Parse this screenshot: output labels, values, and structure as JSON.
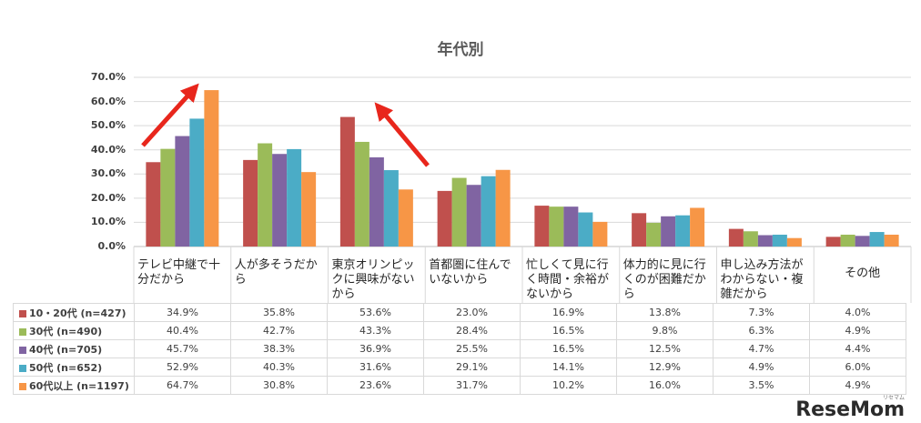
{
  "chart_data": {
    "type": "bar",
    "title": "年代別",
    "ylim": [
      0,
      70
    ],
    "yticks": [
      "0.0%",
      "10.0%",
      "20.0%",
      "30.0%",
      "40.0%",
      "50.0%",
      "60.0%",
      "70.0%"
    ],
    "grid": true,
    "legend": "data-table",
    "categories": [
      "テレビ中継で十分だから",
      "人が多そうだから",
      "東京オリンピックに興味がないから",
      "首都圏に住んでいないから",
      "忙しくて見に行く時間・余裕がないから",
      "体力的に見に行くのが困難だから",
      "申し込み方法がわからない・複雑だから",
      "その他"
    ],
    "series": [
      {
        "name": "10・20代 (n=427)",
        "color": "#c0504d",
        "values": [
          34.9,
          35.8,
          53.6,
          23.0,
          16.9,
          13.8,
          7.3,
          4.0
        ],
        "labels": [
          "34.9%",
          "35.8%",
          "53.6%",
          "23.0%",
          "16.9%",
          "13.8%",
          "7.3%",
          "4.0%"
        ]
      },
      {
        "name": "30代 (n=490)",
        "color": "#9bbb59",
        "values": [
          40.4,
          42.7,
          43.3,
          28.4,
          16.5,
          9.8,
          6.3,
          4.9
        ],
        "labels": [
          "40.4%",
          "42.7%",
          "43.3%",
          "28.4%",
          "16.5%",
          "9.8%",
          "6.3%",
          "4.9%"
        ]
      },
      {
        "name": "40代 (n=705)",
        "color": "#8064a2",
        "values": [
          45.7,
          38.3,
          36.9,
          25.5,
          16.5,
          12.5,
          4.7,
          4.4
        ],
        "labels": [
          "45.7%",
          "38.3%",
          "36.9%",
          "25.5%",
          "16.5%",
          "12.5%",
          "4.7%",
          "4.4%"
        ]
      },
      {
        "name": "50代 (n=652)",
        "color": "#4bacc6",
        "values": [
          52.9,
          40.3,
          31.6,
          29.1,
          14.1,
          12.9,
          4.9,
          6.0
        ],
        "labels": [
          "52.9%",
          "40.3%",
          "31.6%",
          "29.1%",
          "14.1%",
          "12.9%",
          "4.9%",
          "6.0%"
        ]
      },
      {
        "name": "60代以上 (n=1197)",
        "color": "#f79646",
        "values": [
          64.7,
          30.8,
          23.6,
          31.7,
          10.2,
          16.0,
          3.5,
          4.9
        ],
        "labels": [
          "64.7%",
          "30.8%",
          "23.6%",
          "31.7%",
          "10.2%",
          "16.0%",
          "3.5%",
          "4.9%"
        ]
      }
    ],
    "annotations": [
      {
        "type": "arrow",
        "color": "#e8261c",
        "direction": "up-right",
        "near_category": "テレビ中継で十分だから"
      },
      {
        "type": "arrow",
        "color": "#e8261c",
        "direction": "up-left",
        "near_category": "東京オリンピックに興味がないから"
      }
    ]
  },
  "watermark": {
    "text": "ReseMom",
    "small_text": "リセマム"
  }
}
